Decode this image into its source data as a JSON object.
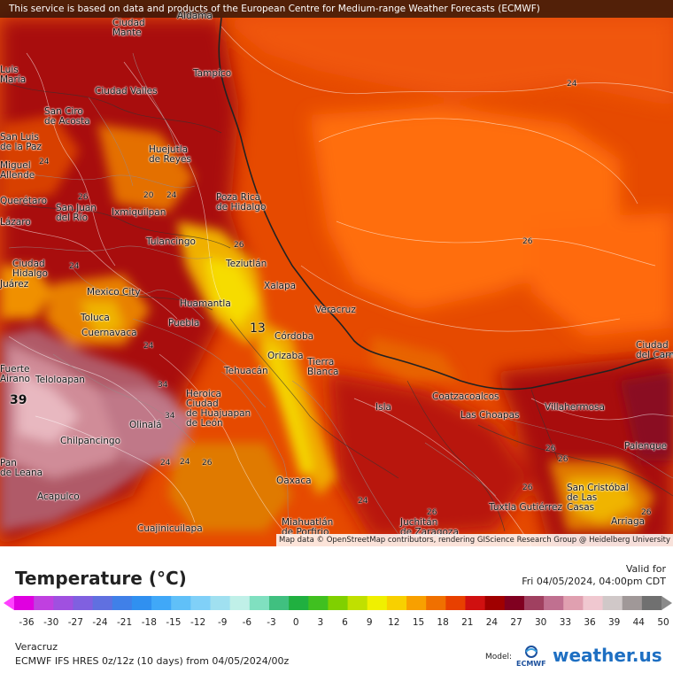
{
  "banner": "This service is based on data and products of the European Centre for Medium-range Weather Forecasts (ECMWF)",
  "attribution": "Map data © OpenStreetMap contributors, rendering GIScience Research Group @ Heidelberg University",
  "legend": {
    "title": "Temperature (°C)",
    "valid_label": "Valid for",
    "valid_time": "Fri 04/05/2024, 04:00pm CDT",
    "location": "Veracruz",
    "model_run": "ECMWF IFS HRES 0z/12z (10 days) from  04/05/2024/00z",
    "model_label": "Model:",
    "ecmwf_text": "ECMWF",
    "brand": "weather.us",
    "ticks": [
      "-36",
      "-30",
      "-27",
      "-24",
      "-21",
      "-18",
      "-15",
      "-12",
      "-9",
      "-6",
      "-3",
      "0",
      "3",
      "6",
      "9",
      "12",
      "15",
      "18",
      "21",
      "24",
      "27",
      "30",
      "33",
      "36",
      "39",
      "44",
      "50"
    ],
    "colors": [
      "#e000e0",
      "#c040e0",
      "#a050e0",
      "#8060e0",
      "#6070e0",
      "#4080e8",
      "#3090f0",
      "#40a8f8",
      "#60c0f8",
      "#80d0f8",
      "#a0e0f0",
      "#c0f0e8",
      "#80e0c0",
      "#40c080",
      "#20b040",
      "#40c020",
      "#80d000",
      "#c0e000",
      "#f0f000",
      "#f8d000",
      "#f8a000",
      "#f07000",
      "#e84000",
      "#d01010",
      "#a00000",
      "#800020",
      "#a04060",
      "#c07090",
      "#e0a0b0",
      "#f0c8d0",
      "#d0c8c8",
      "#a09898",
      "#707070"
    ]
  },
  "cities": [
    {
      "name": "Ciudad\nMante"
    },
    {
      "name": "Aldama"
    },
    {
      "name": "Tampico"
    },
    {
      "name": "Ciudad Valles"
    },
    {
      "name": "San Ciro\nde Acosta"
    },
    {
      "name": "Huejutla\nde Reyes"
    },
    {
      "name": "Poza Rica\nde Hidalgo"
    },
    {
      "name": "Querétaro"
    },
    {
      "name": "San Juan\ndel Río"
    },
    {
      "name": "Ixmiquilpan"
    },
    {
      "name": "Tulancingo"
    },
    {
      "name": "Teziutlán"
    },
    {
      "name": "Xalapa"
    },
    {
      "name": "Ciudad\nHidalgo"
    },
    {
      "name": "Mexico City"
    },
    {
      "name": "Huamantla"
    },
    {
      "name": "Veracruz"
    },
    {
      "name": "Toluca"
    },
    {
      "name": "Cuernavaca"
    },
    {
      "name": "Puebla"
    },
    {
      "name": "Córdoba"
    },
    {
      "name": "Orizaba"
    },
    {
      "name": "Tierra\nBlanca"
    },
    {
      "name": "Tehuacán"
    },
    {
      "name": "Teloloapan"
    },
    {
      "name": "Heroica\nCiudad\nde Huajuapan\nde León"
    },
    {
      "name": "Coatzacoalcos"
    },
    {
      "name": "Las Choapas"
    },
    {
      "name": "Villahermosa"
    },
    {
      "name": "Isla"
    },
    {
      "name": "Ciudad\ndel Carmen"
    },
    {
      "name": "Olinalá"
    },
    {
      "name": "Chilpancingo"
    },
    {
      "name": "Palenque"
    },
    {
      "name": "Oaxaca"
    },
    {
      "name": "Acapulco"
    },
    {
      "name": "San Cristóbal\nde Las\nCasas"
    },
    {
      "name": "Tuxtla Gutiérrez"
    },
    {
      "name": "Cuajinicuilapa"
    },
    {
      "name": "Miahuatlán\nde Porfirio"
    },
    {
      "name": "Juchitán\nde Zaragoza"
    },
    {
      "name": "Luis\nMaría"
    },
    {
      "name": "San Luis\nde la Paz"
    },
    {
      "name": "Miguel\nAllende"
    },
    {
      "name": "Lázaro"
    },
    {
      "name": "Juárez"
    },
    {
      "name": "Pan\nde Leana"
    },
    {
      "name": "Fuerte\nAirano"
    },
    {
      "name": "Arriaga"
    }
  ],
  "isolines": [
    "24",
    "26",
    "24",
    "26",
    "24",
    "20",
    "24",
    "26",
    "24",
    "13",
    "34",
    "39",
    "34",
    "24",
    "26",
    "24",
    "26",
    "24",
    "26",
    "26",
    "26",
    "26"
  ]
}
